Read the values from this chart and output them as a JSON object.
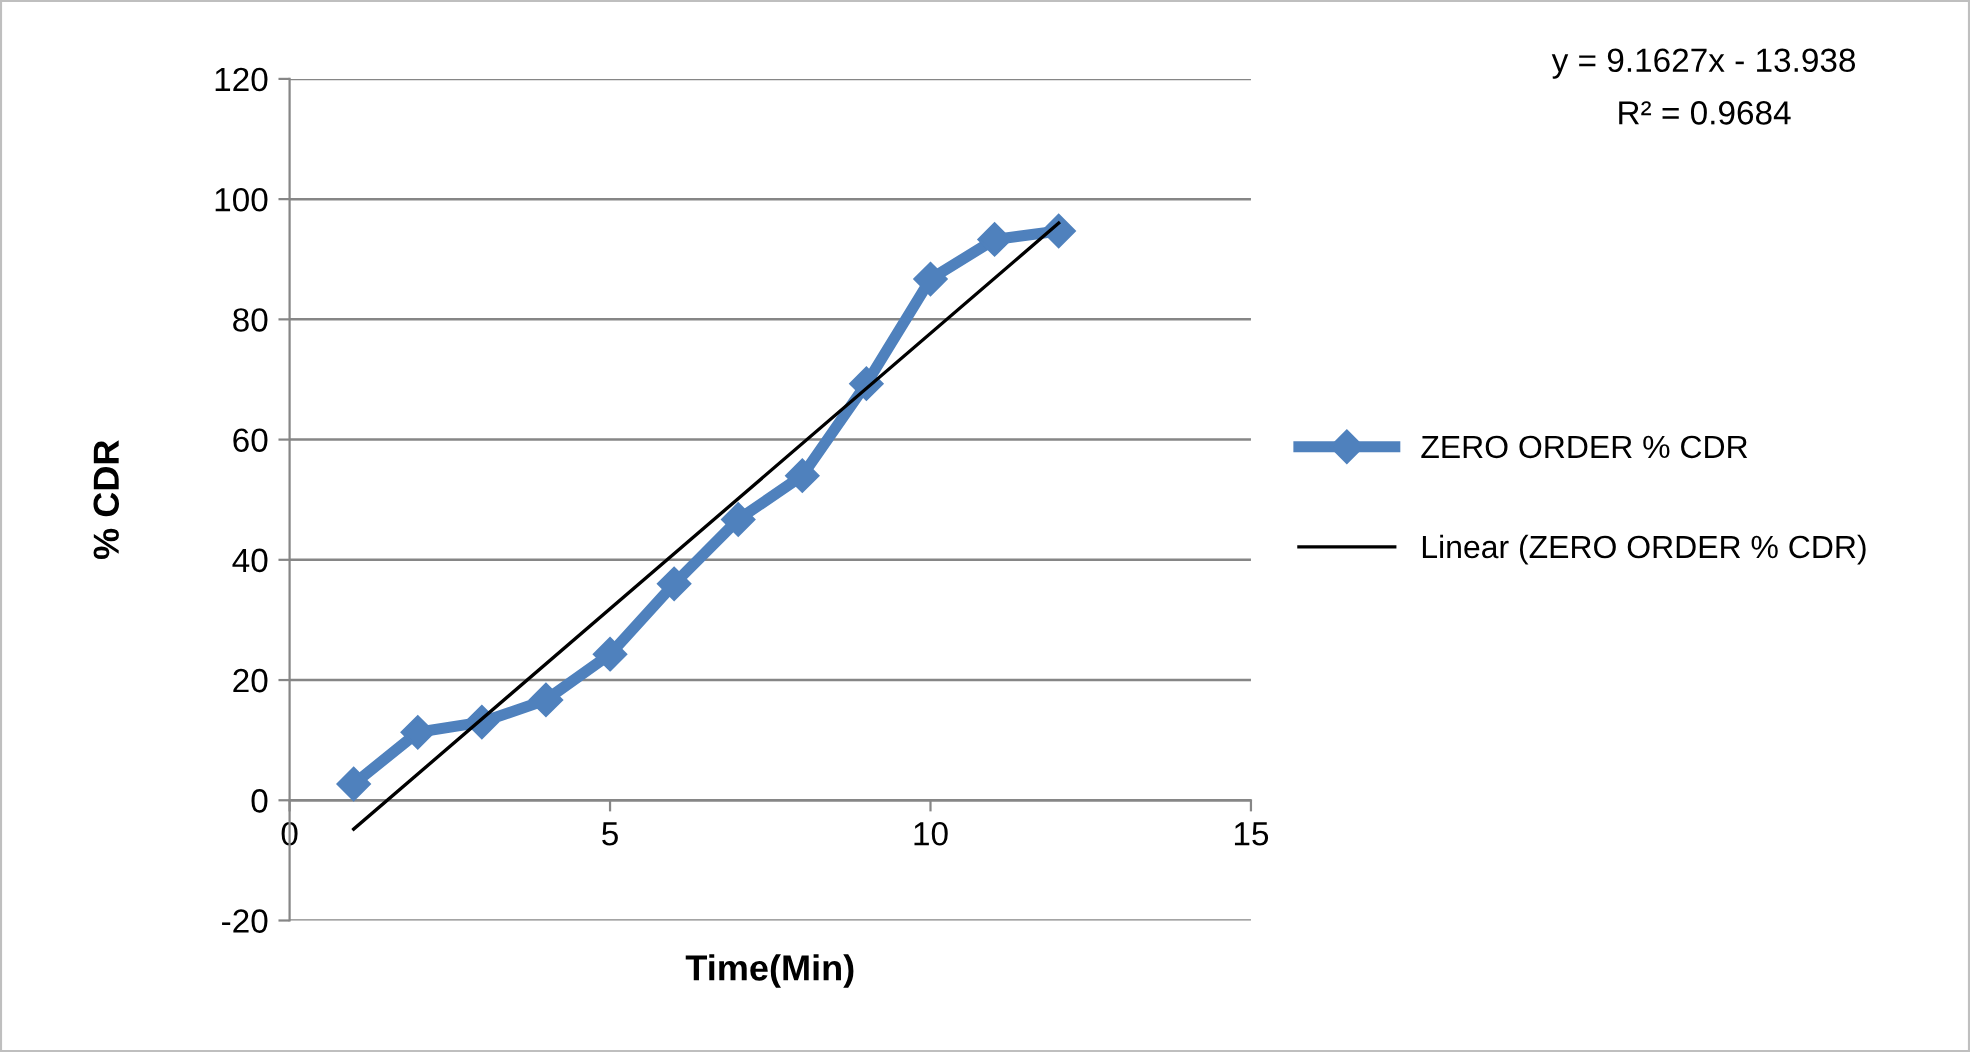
{
  "chart_data": {
    "type": "line",
    "xlabel": "Time(Min)",
    "ylabel": "% CDR",
    "x": [
      1,
      2,
      3,
      4,
      5,
      6,
      7,
      8,
      9,
      10,
      11,
      12
    ],
    "series": [
      {
        "name": "ZERO ORDER % CDR",
        "color": "#4f81bd",
        "values": [
          2.7,
          11.3,
          13,
          16.7,
          24.3,
          36,
          46.7,
          54,
          69.3,
          86.7,
          93.3,
          94.7
        ],
        "marker": "diamond",
        "line_style": "solid"
      },
      {
        "name": "Linear (ZERO ORDER % CDR)",
        "type": "line",
        "color": "#000000",
        "x": [
          1,
          12
        ],
        "values": [
          -4.8,
          96.0
        ],
        "marker": "none",
        "line_style": "solid"
      }
    ],
    "annotations": [
      "y = 9.1627x - 13.938",
      "R² = 0.9684"
    ],
    "xlim": [
      0,
      15
    ],
    "xticks": [
      0,
      5,
      10,
      15
    ],
    "ylim": [
      -20,
      120
    ],
    "yticks": [
      -20,
      0,
      20,
      40,
      60,
      80,
      100,
      120
    ],
    "grid": "y",
    "legend": "right"
  }
}
